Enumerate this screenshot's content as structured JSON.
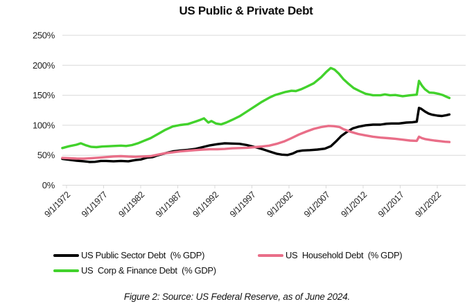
{
  "title": "US Public & Private Debt",
  "caption": "Figure 2: Source: US Federal Reserve, as of June 2024.",
  "colors": {
    "public_sector": "#000000",
    "household": "#e96e88",
    "corp_finance": "#42d22c",
    "gridline": "#d9d9d9",
    "tick_text": "#1f1f1f"
  },
  "chart_data": {
    "type": "line",
    "title": "US Public & Private Debt",
    "xlabel": "",
    "ylabel": "",
    "ylim": [
      0,
      250
    ],
    "grid": "horizontal",
    "legend_position": "bottom",
    "y_ticks": [
      {
        "value": 0,
        "label": "0%"
      },
      {
        "value": 50,
        "label": "50%"
      },
      {
        "value": 100,
        "label": "100%"
      },
      {
        "value": 150,
        "label": "150%"
      },
      {
        "value": 200,
        "label": "200%"
      },
      {
        "value": 250,
        "label": "250%"
      }
    ],
    "x_tick_labels": [
      "9/1/1972",
      "9/1/1977",
      "9/1/1982",
      "9/1/1987",
      "9/1/1992",
      "9/1/1997",
      "9/1/2002",
      "9/1/2007",
      "9/1/2012",
      "9/1/2017",
      "9/1/2022"
    ],
    "x_tick_interval_years": 5,
    "x_range_years": [
      1972.1,
      2024.4
    ],
    "series": [
      {
        "name": "US Public Sector Debt  (% GDP)",
        "color": "#000000",
        "points": [
          [
            1972.1,
            44
          ],
          [
            1973,
            42.5
          ],
          [
            1974,
            41
          ],
          [
            1975,
            40
          ],
          [
            1975.8,
            38.8
          ],
          [
            1976.5,
            39
          ],
          [
            1977.3,
            40.5
          ],
          [
            1978,
            40.5
          ],
          [
            1979,
            40
          ],
          [
            1980,
            40.5
          ],
          [
            1981,
            40
          ],
          [
            1982,
            42
          ],
          [
            1982.7,
            43
          ],
          [
            1983.5,
            46
          ],
          [
            1984.3,
            47
          ],
          [
            1985,
            50
          ],
          [
            1986,
            53.5
          ],
          [
            1987,
            56.5
          ],
          [
            1988,
            58
          ],
          [
            1989,
            59
          ],
          [
            1990,
            60.5
          ],
          [
            1991,
            63.5
          ],
          [
            1992,
            66.5
          ],
          [
            1993,
            68.5
          ],
          [
            1994,
            70
          ],
          [
            1995,
            69.5
          ],
          [
            1996,
            69
          ],
          [
            1997,
            67
          ],
          [
            1998,
            64
          ],
          [
            1999,
            60.5
          ],
          [
            2000,
            56.5
          ],
          [
            2001,
            52.5
          ],
          [
            2001.7,
            51
          ],
          [
            2002.5,
            50.5
          ],
          [
            2003.2,
            53
          ],
          [
            2003.8,
            56.5
          ],
          [
            2004.5,
            58
          ],
          [
            2005.5,
            58.5
          ],
          [
            2006.5,
            59.5
          ],
          [
            2007.5,
            61
          ],
          [
            2008.3,
            65
          ],
          [
            2009,
            73
          ],
          [
            2009.7,
            82
          ],
          [
            2010.5,
            89
          ],
          [
            2011.3,
            95
          ],
          [
            2012,
            97.5
          ],
          [
            2013,
            100
          ],
          [
            2014,
            101
          ],
          [
            2015,
            101
          ],
          [
            2015.8,
            102.5
          ],
          [
            2016.5,
            103
          ],
          [
            2017.5,
            103
          ],
          [
            2018.5,
            104.5
          ],
          [
            2019.3,
            105
          ],
          [
            2019.9,
            106
          ],
          [
            2020.2,
            129
          ],
          [
            2020.5,
            127.5
          ],
          [
            2021,
            123
          ],
          [
            2021.5,
            119.5
          ],
          [
            2022,
            117.5
          ],
          [
            2022.7,
            116
          ],
          [
            2023.3,
            115.5
          ],
          [
            2023.8,
            116.5
          ],
          [
            2024.3,
            118
          ]
        ]
      },
      {
        "name": "US  Household Debt  (% GDP)",
        "color": "#e96e88",
        "points": [
          [
            1972.1,
            45.5
          ],
          [
            1973,
            45
          ],
          [
            1974,
            44.5
          ],
          [
            1975,
            44.3
          ],
          [
            1976,
            45
          ],
          [
            1977,
            46
          ],
          [
            1978,
            47
          ],
          [
            1979,
            48
          ],
          [
            1980,
            48.5
          ],
          [
            1981,
            47.8
          ],
          [
            1982,
            47.5
          ],
          [
            1983,
            48
          ],
          [
            1984,
            48.5
          ],
          [
            1985,
            51
          ],
          [
            1986,
            53.5
          ],
          [
            1987,
            55
          ],
          [
            1988,
            56.5
          ],
          [
            1989,
            57.5
          ],
          [
            1990,
            58.5
          ],
          [
            1991,
            59.5
          ],
          [
            1992,
            60
          ],
          [
            1993,
            60
          ],
          [
            1994,
            60.5
          ],
          [
            1995,
            61.5
          ],
          [
            1996,
            62
          ],
          [
            1997,
            62.5
          ],
          [
            1998,
            63.5
          ],
          [
            1999,
            64.5
          ],
          [
            2000,
            66
          ],
          [
            2001,
            69
          ],
          [
            2002,
            73
          ],
          [
            2003,
            78.5
          ],
          [
            2004,
            84.5
          ],
          [
            2005,
            89.5
          ],
          [
            2006,
            94
          ],
          [
            2007,
            97
          ],
          [
            2008,
            99
          ],
          [
            2008.7,
            98.5
          ],
          [
            2009.5,
            97
          ],
          [
            2010,
            93.5
          ],
          [
            2011,
            89
          ],
          [
            2012,
            85.5
          ],
          [
            2013,
            83
          ],
          [
            2014,
            81
          ],
          [
            2015,
            79.5
          ],
          [
            2016,
            78.5
          ],
          [
            2017,
            77.5
          ],
          [
            2018,
            76
          ],
          [
            2019,
            74.5
          ],
          [
            2019.9,
            74
          ],
          [
            2020.2,
            81
          ],
          [
            2020.6,
            78.5
          ],
          [
            2021,
            77
          ],
          [
            2021.7,
            75.5
          ],
          [
            2022.3,
            74.5
          ],
          [
            2023,
            73.5
          ],
          [
            2023.7,
            72.5
          ],
          [
            2024.3,
            72
          ]
        ]
      },
      {
        "name": "US  Corp & Finance Debt  (% GDP)",
        "color": "#42d22c",
        "points": [
          [
            1972.1,
            62
          ],
          [
            1973,
            65
          ],
          [
            1974,
            67.5
          ],
          [
            1974.6,
            70
          ],
          [
            1975.3,
            66.5
          ],
          [
            1976,
            64
          ],
          [
            1976.7,
            63.5
          ],
          [
            1977.5,
            64.5
          ],
          [
            1978.3,
            65
          ],
          [
            1979,
            65.5
          ],
          [
            1980,
            66
          ],
          [
            1980.7,
            65.5
          ],
          [
            1981.5,
            67
          ],
          [
            1982.3,
            70
          ],
          [
            1983,
            73.5
          ],
          [
            1984,
            78.5
          ],
          [
            1985,
            85.5
          ],
          [
            1986,
            92.5
          ],
          [
            1987,
            98
          ],
          [
            1988,
            100.5
          ],
          [
            1989,
            102
          ],
          [
            1990,
            106
          ],
          [
            1990.7,
            109
          ],
          [
            1991.2,
            111.5
          ],
          [
            1991.8,
            104.5
          ],
          [
            1992.2,
            107
          ],
          [
            1992.8,
            103
          ],
          [
            1993.5,
            101.5
          ],
          [
            1994.2,
            104.5
          ],
          [
            1995,
            109
          ],
          [
            1996,
            115
          ],
          [
            1997,
            123
          ],
          [
            1998,
            131
          ],
          [
            1999,
            139
          ],
          [
            2000,
            146
          ],
          [
            2000.8,
            150.5
          ],
          [
            2001.5,
            153
          ],
          [
            2002.2,
            155.5
          ],
          [
            2003,
            157.5
          ],
          [
            2003.6,
            157
          ],
          [
            2004.3,
            160
          ],
          [
            2005,
            164
          ],
          [
            2006,
            170
          ],
          [
            2007,
            180
          ],
          [
            2007.7,
            189
          ],
          [
            2008.3,
            195.5
          ],
          [
            2008.8,
            193
          ],
          [
            2009.4,
            186
          ],
          [
            2010,
            177
          ],
          [
            2010.7,
            169
          ],
          [
            2011.4,
            162
          ],
          [
            2012.2,
            157
          ],
          [
            2013,
            152.5
          ],
          [
            2014,
            150
          ],
          [
            2015,
            150
          ],
          [
            2015.6,
            151.5
          ],
          [
            2016.3,
            150
          ],
          [
            2017,
            150.5
          ],
          [
            2018,
            148.5
          ],
          [
            2019,
            150
          ],
          [
            2019.9,
            151
          ],
          [
            2020.2,
            174
          ],
          [
            2020.6,
            166
          ],
          [
            2021,
            160
          ],
          [
            2021.6,
            154.5
          ],
          [
            2022.2,
            154
          ],
          [
            2022.8,
            152.5
          ],
          [
            2023.4,
            150.5
          ],
          [
            2024,
            147
          ],
          [
            2024.3,
            145.5
          ]
        ]
      }
    ]
  }
}
